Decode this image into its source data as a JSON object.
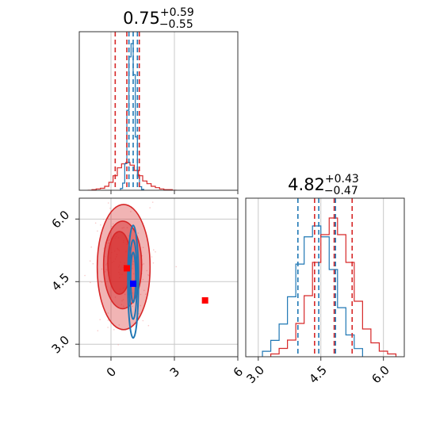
{
  "chart_data": {
    "type": "corner",
    "colors": {
      "red": "#d62728",
      "blue": "#1f77b4",
      "grid": "#c8c8c8",
      "marker_red": "#ff0000",
      "marker_blue": "#0000ff"
    },
    "param1": {
      "title": {
        "value": "0.75",
        "upper": "+0.59",
        "lower": "−0.55"
      },
      "range": [
        -1.5,
        6
      ],
      "ticks": [
        0,
        3,
        6
      ],
      "tick_labels": [
        "0",
        "3",
        "6"
      ],
      "red_hist": {
        "x": [
          -1.0,
          -0.8,
          -0.6,
          -0.4,
          -0.2,
          0.0,
          0.2,
          0.4,
          0.6,
          0.8,
          1.0,
          1.2,
          1.4,
          1.6,
          1.8,
          2.0,
          2.2,
          2.4,
          2.6,
          2.8,
          3.0
        ],
        "counts": [
          0,
          1,
          2,
          3,
          6,
          12,
          22,
          34,
          40,
          42,
          38,
          30,
          22,
          14,
          10,
          6,
          4,
          2,
          1,
          1,
          0
        ]
      },
      "blue_hist": {
        "x": [
          0.5,
          0.6,
          0.7,
          0.8,
          0.9,
          1.0,
          1.1,
          1.2,
          1.3,
          1.4,
          1.5
        ],
        "counts": [
          2,
          8,
          30,
          90,
          150,
          165,
          130,
          60,
          15,
          4,
          1
        ]
      },
      "red_quantiles": [
        0.2,
        0.75,
        1.34
      ],
      "blue_quantiles": [
        0.85,
        1.05,
        1.25
      ]
    },
    "param2": {
      "title": {
        "value": "4.82",
        "upper": "+0.43",
        "lower": "−0.47"
      },
      "range": [
        2.7,
        6.5
      ],
      "ticks": [
        3.0,
        4.5,
        6.0
      ],
      "tick_labels": [
        "3.0",
        "4.5",
        "6.0"
      ],
      "red_hist": {
        "x": [
          3.4,
          3.6,
          3.8,
          4.0,
          4.2,
          4.4,
          4.6,
          4.8,
          5.0,
          5.2,
          5.4,
          5.6,
          5.8,
          6.0,
          6.2
        ],
        "counts": [
          1,
          3,
          6,
          12,
          22,
          34,
          44,
          50,
          44,
          34,
          20,
          10,
          5,
          2,
          1
        ]
      },
      "blue_hist": {
        "x": [
          3.2,
          3.4,
          3.6,
          3.8,
          4.0,
          4.2,
          4.4,
          4.6,
          4.8,
          5.0,
          5.2,
          5.4
        ],
        "counts": [
          2,
          6,
          12,
          22,
          34,
          44,
          48,
          44,
          32,
          18,
          8,
          3
        ]
      },
      "red_quantiles": [
        4.35,
        4.82,
        5.25
      ],
      "blue_quantiles": [
        3.95,
        4.45,
        4.85
      ]
    },
    "scatter_2d": {
      "red_markers": [
        {
          "x": 0.75,
          "y": 4.82
        },
        {
          "x": 4.45,
          "y": 4.05
        }
      ],
      "blue_markers": [
        {
          "x": 1.05,
          "y": 4.45
        }
      ],
      "red_contours": [
        {
          "cx": 0.6,
          "cy": 4.85,
          "rx": 1.25,
          "ry": 1.5,
          "alpha": 0.5
        },
        {
          "cx": 0.55,
          "cy": 4.9,
          "rx": 0.9,
          "ry": 1.05,
          "alpha": 0.7
        },
        {
          "cx": 0.4,
          "cy": 4.95,
          "rx": 0.55,
          "ry": 0.75,
          "alpha": 0.9
        }
      ],
      "blue_contours": [
        {
          "cx": 1.05,
          "cy": 4.5,
          "rx": 0.25,
          "ry": 1.35
        },
        {
          "cx": 1.05,
          "cy": 4.55,
          "rx": 0.18,
          "ry": 0.95
        },
        {
          "cx": 1.05,
          "cy": 4.6,
          "rx": 0.12,
          "ry": 0.6
        }
      ]
    }
  }
}
